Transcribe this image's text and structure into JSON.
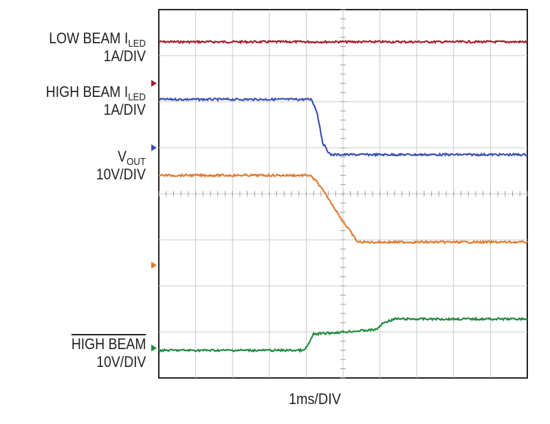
{
  "chart_data": {
    "type": "line",
    "xlabel": "1ms/DIV",
    "x_divisions": 10,
    "y_divisions": 8,
    "grid": true,
    "channels": [
      {
        "name": "LOW BEAM",
        "name_sub": "LED",
        "name_prefix": "I",
        "scale": "1A/DIV",
        "color": "#a6192e",
        "marker_level": 6.4,
        "x": [
          0,
          10
        ],
        "y": [
          7.3,
          7.3
        ]
      },
      {
        "name": "HIGH BEAM",
        "name_sub": "LED",
        "name_prefix": "I",
        "scale": "1A/DIV",
        "color": "#3a4fb0",
        "marker_level": 5.0,
        "x": [
          0,
          4.15,
          4.3,
          4.45,
          4.65,
          10
        ],
        "y": [
          6.05,
          6.05,
          5.75,
          5.1,
          4.85,
          4.85
        ]
      },
      {
        "name": "V",
        "name_sub": "OUT",
        "scale": "10V/DIV",
        "color": "#e07a2e",
        "marker_level": 2.45,
        "x": [
          0,
          4.1,
          4.3,
          4.6,
          5.0,
          5.4,
          10
        ],
        "y": [
          4.4,
          4.4,
          4.25,
          3.9,
          3.4,
          2.95,
          2.95
        ]
      },
      {
        "name": "HIGH BEAM",
        "overline": true,
        "scale": "10V/DIV",
        "color": "#1f8a3c",
        "marker_level": 0.65,
        "x": [
          0,
          3.95,
          4.05,
          4.2,
          5.9,
          6.1,
          6.4,
          10
        ],
        "y": [
          0.6,
          0.6,
          0.72,
          0.95,
          1.05,
          1.2,
          1.28,
          1.28
        ]
      }
    ]
  }
}
